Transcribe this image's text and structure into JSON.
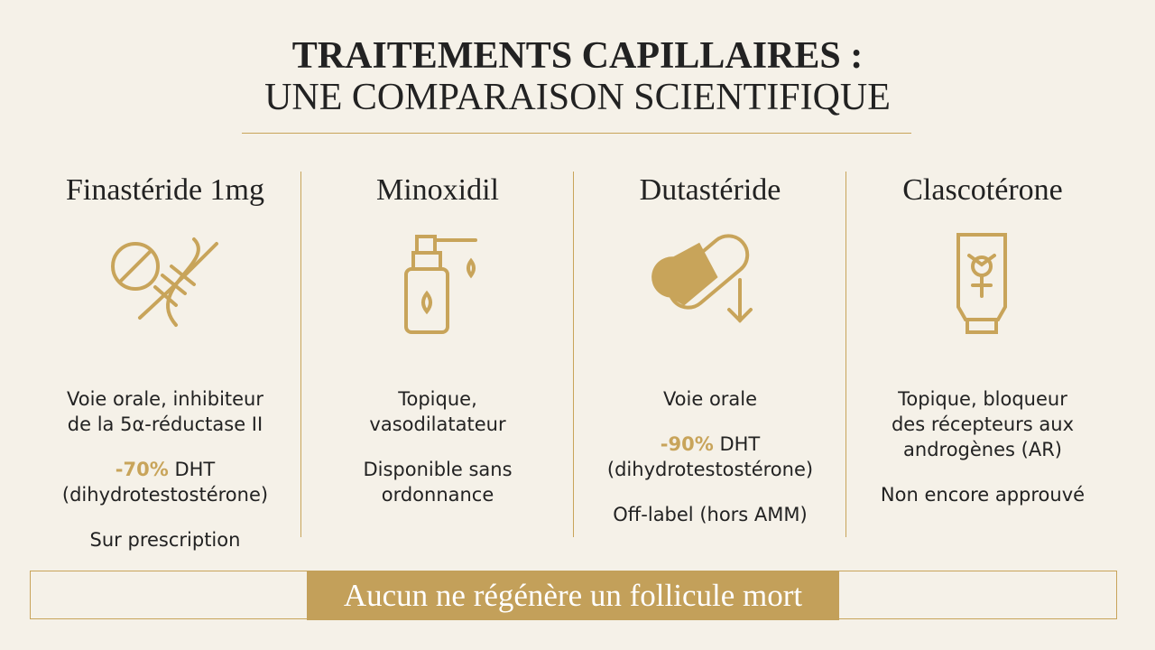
{
  "header": {
    "title_line1": "TRAITEMENTS CAPILLAIRES :",
    "title_line2": "UNE COMPARAISON SCIENTIFIQUE"
  },
  "columns": [
    {
      "name": "Finastéride 1mg",
      "description": [
        "Voie orale, inhibiteur",
        "de la 5α-réductase II"
      ],
      "stat": {
        "highlight": "-70%",
        "rest": "DHT",
        "line2": "(dihydrotestostérone)"
      },
      "note": [
        "Sur prescription"
      ]
    },
    {
      "name": "Minoxidil",
      "description": [
        "Topique,",
        "vasodilatateur"
      ],
      "note": [
        "Disponible sans",
        "ordonnance"
      ]
    },
    {
      "name": "Dutastéride",
      "description": [
        "Voie orale"
      ],
      "stat": {
        "highlight": "-90%",
        "rest": "DHT",
        "line2": "(dihydrotestostérone)"
      },
      "note": [
        "Off-label (hors AMM)"
      ]
    },
    {
      "name": "Clascotérone",
      "description": [
        "Topique, bloqueur",
        "des récepteurs aux",
        "androgènes (AR)"
      ],
      "note": [
        "Non encore approuvé"
      ]
    }
  ],
  "footer": {
    "text": "Aucun ne régénère un follicule mort"
  }
}
